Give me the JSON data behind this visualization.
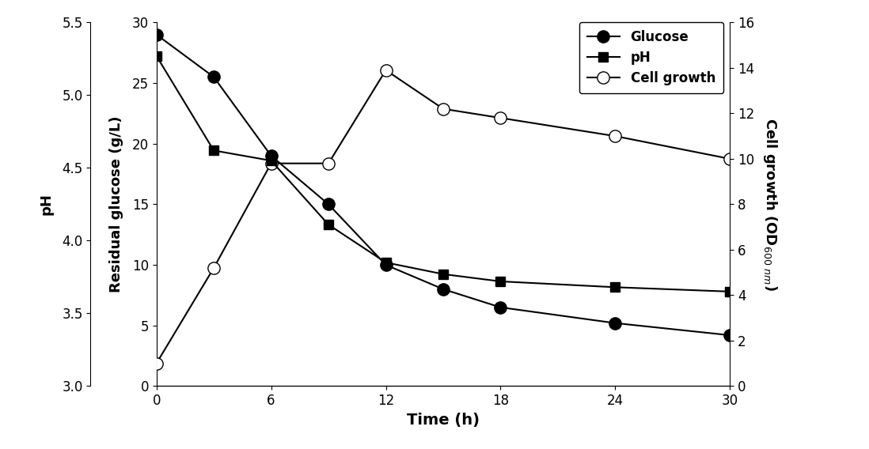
{
  "time": [
    0,
    3,
    6,
    9,
    12,
    15,
    18,
    24,
    30
  ],
  "glucose": [
    29.0,
    25.5,
    19.0,
    15.0,
    10.0,
    8.0,
    6.5,
    5.2,
    4.2
  ],
  "pH": [
    5.27,
    4.62,
    4.55,
    4.11,
    3.85,
    3.77,
    3.72,
    3.68,
    3.65
  ],
  "cell_growth_time": [
    0,
    3,
    6,
    9,
    12,
    15,
    18,
    24,
    30
  ],
  "cell_growth_vals": [
    1.0,
    5.2,
    9.8,
    9.8,
    13.9,
    12.2,
    11.8,
    11.0,
    10.0
  ],
  "glucose_ylim": [
    0,
    30
  ],
  "pH_ylim": [
    3.0,
    5.5
  ],
  "cell_growth_ylim": [
    0,
    16
  ],
  "time_xlim": [
    0,
    30
  ],
  "xlabel": "Time (h)",
  "ylabel_left": "pH",
  "ylabel_center": "Residual glucose (g/L)",
  "ylabel_right": "Cell growth (OD$_{600\\ nm}$)",
  "legend_glucose": "Glucose",
  "legend_pH": "pH",
  "legend_cell": "Cell growth",
  "xticks": [
    0,
    6,
    12,
    18,
    24,
    30
  ],
  "yticks_glucose": [
    0,
    5,
    10,
    15,
    20,
    25,
    30
  ],
  "yticks_pH": [
    3.0,
    3.5,
    4.0,
    4.5,
    5.0,
    5.5
  ],
  "yticks_cell": [
    0,
    2,
    4,
    6,
    8,
    10,
    12,
    14,
    16
  ],
  "line_color": "black"
}
